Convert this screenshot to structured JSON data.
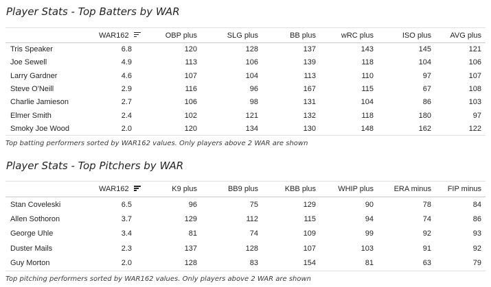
{
  "batters": {
    "title": "Player Stats - Top Batters by WAR",
    "caption": "Top batting performers sorted by WAR162 values. Only players above 2 WAR are shown",
    "headers": [
      "",
      "WAR162",
      "OBP plus",
      "SLG plus",
      "BB plus",
      "wRC plus",
      "ISO plus",
      "AVG plus"
    ],
    "rows": [
      [
        "Tris Speaker",
        "6.8",
        "120",
        "128",
        "137",
        "143",
        "145",
        "121"
      ],
      [
        "Joe Sewell",
        "4.9",
        "113",
        "106",
        "139",
        "118",
        "104",
        "106"
      ],
      [
        "Larry Gardner",
        "4.6",
        "107",
        "104",
        "113",
        "110",
        "97",
        "107"
      ],
      [
        "Steve O'Neill",
        "2.9",
        "116",
        "96",
        "167",
        "115",
        "67",
        "108"
      ],
      [
        "Charlie Jamieson",
        "2.7",
        "106",
        "98",
        "131",
        "104",
        "86",
        "103"
      ],
      [
        "Elmer Smith",
        "2.4",
        "102",
        "121",
        "132",
        "118",
        "180",
        "97"
      ],
      [
        "Smoky Joe Wood",
        "2.0",
        "120",
        "134",
        "130",
        "148",
        "162",
        "122"
      ]
    ]
  },
  "pitchers": {
    "title": "Player Stats - Top Pitchers by WAR",
    "caption": "Top pitching performers sorted by WAR162 values. Only players above 2 WAR are shown",
    "headers": [
      "",
      "WAR162",
      "K9 plus",
      "BB9 plus",
      "KBB plus",
      "WHIP plus",
      "ERA minus",
      "FIP minus"
    ],
    "rows": [
      [
        "Stan Coveleski",
        "6.5",
        "96",
        "75",
        "129",
        "90",
        "78",
        "84"
      ],
      [
        "Allen Sothoron",
        "3.7",
        "129",
        "112",
        "115",
        "94",
        "74",
        "86"
      ],
      [
        "George Uhle",
        "3.4",
        "81",
        "74",
        "109",
        "99",
        "92",
        "93"
      ],
      [
        "Duster Mails",
        "2.3",
        "137",
        "128",
        "107",
        "103",
        "91",
        "92"
      ],
      [
        "Guy Morton",
        "2.0",
        "128",
        "83",
        "154",
        "81",
        "63",
        "79"
      ]
    ]
  },
  "icons": {
    "sort": "sort-descending-icon"
  }
}
